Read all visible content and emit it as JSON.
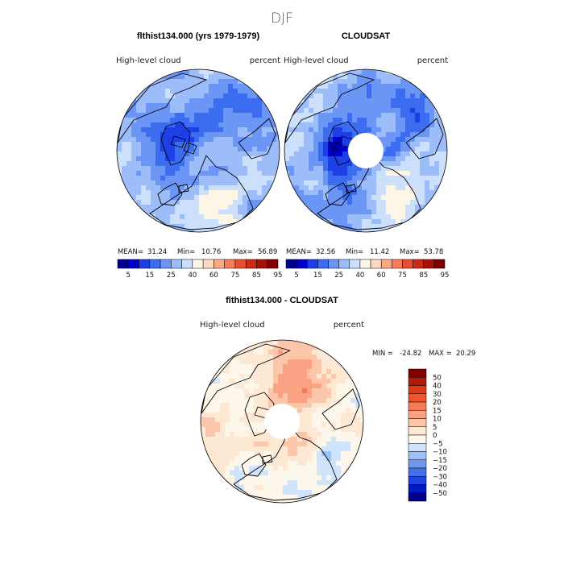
{
  "figure": {
    "season_title": "DJF"
  },
  "chart_data": [
    {
      "type": "heatmap",
      "projection": "north-polar-stereographic",
      "title": "flthist134.000 (yrs 1979-1979)",
      "left_label": "High-level cloud",
      "right_label": "percent",
      "stats": {
        "mean_label": "MEAN=",
        "mean": "31.24",
        "min_label": "Min=",
        "min": "10.76",
        "max_label": "Max=",
        "max": "56.89"
      },
      "pole_masked": false,
      "pattern": "model"
    },
    {
      "type": "heatmap",
      "projection": "north-polar-stereographic",
      "title": "CLOUDSAT",
      "left_label": "High-level cloud",
      "right_label": "percent",
      "stats": {
        "mean_label": "MEAN=",
        "mean": "32.56",
        "min_label": "Min=",
        "min": "11.42",
        "max_label": "Max=",
        "max": "53.78"
      },
      "pole_masked": true,
      "pattern": "obs"
    },
    {
      "type": "heatmap",
      "projection": "north-polar-stereographic",
      "title": "flthist134.000 - CLOUDSAT",
      "left_label": "High-level cloud",
      "right_label": "percent",
      "stats": {
        "min_label": "MIN =",
        "min": "-24.82",
        "max_label": "MAX =",
        "max": "20.29"
      },
      "pole_masked": true,
      "pattern": "diff"
    }
  ],
  "colorbars": {
    "absolute": {
      "levels": [
        "5",
        "15",
        "25",
        "40",
        "60",
        "75",
        "85",
        "95"
      ],
      "colors": [
        "#00008b",
        "#0000cd",
        "#1e3fe6",
        "#3c6cf0",
        "#6c96f6",
        "#9cbcfa",
        "#cce0fc",
        "#fdf5e6",
        "#fdd9c0",
        "#fbaa86",
        "#f47c5a",
        "#e65030",
        "#cc2a14",
        "#a41208",
        "#800000"
      ]
    },
    "difference": {
      "levels": [
        "50",
        "40",
        "30",
        "20",
        "15",
        "10",
        "5",
        "0",
        "−5",
        "−10",
        "−15",
        "−20",
        "−30",
        "−40",
        "−50"
      ],
      "colors": [
        "#800000",
        "#b01a08",
        "#dc3a18",
        "#f0542a",
        "#f77c56",
        "#fba284",
        "#fcc6aa",
        "#fde8d4",
        "#fdf6ea",
        "#cfe3fb",
        "#9cc0f8",
        "#6e98f0",
        "#4470ea",
        "#1e44e0",
        "#0018c0",
        "#000088"
      ]
    }
  }
}
